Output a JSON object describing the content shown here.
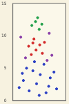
{
  "chart_data": {
    "type": "scatter",
    "xlim": [
      0,
      10
    ],
    "xticks": [
      0,
      5,
      10
    ],
    "ylim": [
      0,
      15
    ],
    "yticks": [
      0,
      5,
      10,
      15
    ],
    "grid": false,
    "tick_labels": "y",
    "marker": "circle",
    "series": [
      {
        "color": "#2b3fc4",
        "x": [
          1.2,
          2.0,
          3.1,
          4.5,
          5.2,
          6.3,
          7.1,
          2.6,
          3.8,
          5.9,
          6.8,
          7.8,
          4.1,
          8.3,
          1.8,
          5.0
        ],
        "values": [
          2.0,
          3.1,
          1.5,
          2.6,
          4.0,
          1.2,
          3.5,
          5.0,
          4.6,
          5.6,
          2.2,
          4.4,
          6.0,
          1.8,
          4.2,
          0.8
        ]
      },
      {
        "color": "#d42a2a",
        "x": [
          3.0,
          3.8,
          4.4,
          5.1,
          4.0,
          5.6,
          3.5,
          6.0
        ],
        "values": [
          8.4,
          8.9,
          7.8,
          8.6,
          9.5,
          7.3,
          7.1,
          9.0
        ]
      },
      {
        "color": "#22a04a",
        "x": [
          3.6,
          4.3,
          5.0,
          4.7,
          5.5
        ],
        "values": [
          11.6,
          12.2,
          11.0,
          12.8,
          11.8
        ]
      },
      {
        "color": "#8a3fa8",
        "x": [
          2.4,
          6.5,
          7.4,
          1.5,
          6.9
        ],
        "values": [
          6.6,
          6.2,
          7.0,
          9.8,
          10.4
        ]
      }
    ]
  }
}
